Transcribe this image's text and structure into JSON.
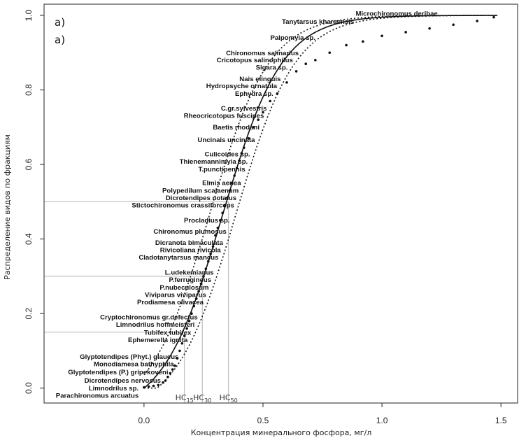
{
  "chart_data": {
    "type": "scatter",
    "panel_labels": [
      "a)",
      "a)"
    ],
    "xlabel": "Концентрация минерального фосфора, мг/л",
    "ylabel": "Распределение видов по фракциям",
    "xlim": [
      -0.42,
      1.57
    ],
    "ylim": [
      -0.04,
      1.03
    ],
    "x_ticks": [
      "0.0",
      "0.5",
      "1.0",
      "1.5"
    ],
    "y_ticks": [
      "0.0",
      "0.2",
      "0.4",
      "0.6",
      "0.8",
      "1.0"
    ],
    "hc_markers": [
      {
        "label": "HC",
        "sub": "15",
        "x": 0.17,
        "y": 0.15
      },
      {
        "label": "HC",
        "sub": "30",
        "x": 0.245,
        "y": 0.3
      },
      {
        "label": "HC",
        "sub": "50",
        "x": 0.355,
        "y": 0.5
      }
    ],
    "species_labels": [
      {
        "name": "Microchironomus deribae",
        "y": 1.005
      },
      {
        "name": "Tanytarsus kharaensis",
        "y": 0.983
      },
      {
        "name": "Palpomyia sp.",
        "y": 0.94
      },
      {
        "name": "Chironomus salinarius",
        "y": 0.899
      },
      {
        "name": "Cricotopus salinophilus",
        "y": 0.88
      },
      {
        "name": "Sigara sp.",
        "y": 0.86
      },
      {
        "name": "Nais elinguis",
        "y": 0.829
      },
      {
        "name": "Hydropsyche ornatula",
        "y": 0.81
      },
      {
        "name": "Ephydra sp.",
        "y": 0.79
      },
      {
        "name": "C.gr.sylvestris",
        "y": 0.75
      },
      {
        "name": "Rheocricotopus fuscipes",
        "y": 0.731
      },
      {
        "name": "Baetis rhodani",
        "y": 0.7
      },
      {
        "name": "Uncinais uncinata",
        "y": 0.666
      },
      {
        "name": "Culicoides sp.",
        "y": 0.627
      },
      {
        "name": "Thienemannimyia sp.",
        "y": 0.608
      },
      {
        "name": "T.punctipennis",
        "y": 0.587
      },
      {
        "name": "Elmis aenea",
        "y": 0.55
      },
      {
        "name": "Polypedilum scalaenum",
        "y": 0.53
      },
      {
        "name": "Dicrotendipes notatus",
        "y": 0.51
      },
      {
        "name": "Stictochironomus crassiforceps",
        "y": 0.49
      },
      {
        "name": "Procladius sp.",
        "y": 0.45
      },
      {
        "name": "Chironomus plumosus",
        "y": 0.42
      },
      {
        "name": "Dicranota bimaculata",
        "y": 0.39
      },
      {
        "name": "Rivicoliana rivicola",
        "y": 0.37
      },
      {
        "name": "Cladotanytarsus mancus",
        "y": 0.35
      },
      {
        "name": "L.udekemianus",
        "y": 0.31
      },
      {
        "name": "P.ferrugineus",
        "y": 0.29
      },
      {
        "name": "P.nubeculosum",
        "y": 0.27
      },
      {
        "name": "Viviparus viviparus",
        "y": 0.25
      },
      {
        "name": "Prodiamesa olivacea",
        "y": 0.23
      },
      {
        "name": "Cryptochironomus gr.defectus",
        "y": 0.19
      },
      {
        "name": "Limnodrilus hoffmeisteri",
        "y": 0.17
      },
      {
        "name": "Tubifex tubifex",
        "y": 0.149
      },
      {
        "name": "Ephemerella ignita",
        "y": 0.129
      },
      {
        "name": "Glyptotendipes (Phyt.) glaucus",
        "y": 0.084
      },
      {
        "name": "Monodiamesa bathyphila",
        "y": 0.064
      },
      {
        "name": "Glyptotendipes (P.) gripekoveni",
        "y": 0.043
      },
      {
        "name": "Dicrotendipes nervosus",
        "y": 0.02
      },
      {
        "name": "Limnodrilus sp.",
        "y": -0.001
      },
      {
        "name": "Parachironomus arcuatus",
        "y": -0.02
      }
    ],
    "fit_model": {
      "mu": 0.33,
      "s": 0.125,
      "band_offset": 0.055
    },
    "points": [
      {
        "x": 0.0,
        "y": 0.002
      },
      {
        "x": 0.02,
        "y": 0.004
      },
      {
        "x": 0.04,
        "y": 0.006
      },
      {
        "x": 0.06,
        "y": 0.008
      },
      {
        "x": 0.08,
        "y": 0.015
      },
      {
        "x": 0.09,
        "y": 0.02
      },
      {
        "x": 0.1,
        "y": 0.03
      },
      {
        "x": 0.11,
        "y": 0.04
      },
      {
        "x": 0.12,
        "y": 0.05
      },
      {
        "x": 0.13,
        "y": 0.06
      },
      {
        "x": 0.14,
        "y": 0.08
      },
      {
        "x": 0.15,
        "y": 0.1
      },
      {
        "x": 0.16,
        "y": 0.12
      },
      {
        "x": 0.17,
        "y": 0.14
      },
      {
        "x": 0.18,
        "y": 0.16
      },
      {
        "x": 0.19,
        "y": 0.18
      },
      {
        "x": 0.2,
        "y": 0.2
      },
      {
        "x": 0.21,
        "y": 0.22
      },
      {
        "x": 0.22,
        "y": 0.24
      },
      {
        "x": 0.23,
        "y": 0.26
      },
      {
        "x": 0.24,
        "y": 0.28
      },
      {
        "x": 0.25,
        "y": 0.3
      },
      {
        "x": 0.26,
        "y": 0.32
      },
      {
        "x": 0.27,
        "y": 0.34
      },
      {
        "x": 0.28,
        "y": 0.36
      },
      {
        "x": 0.29,
        "y": 0.38
      },
      {
        "x": 0.3,
        "y": 0.41
      },
      {
        "x": 0.31,
        "y": 0.43
      },
      {
        "x": 0.32,
        "y": 0.45
      },
      {
        "x": 0.33,
        "y": 0.47
      },
      {
        "x": 0.34,
        "y": 0.49
      },
      {
        "x": 0.35,
        "y": 0.51
      },
      {
        "x": 0.36,
        "y": 0.53
      },
      {
        "x": 0.37,
        "y": 0.55
      },
      {
        "x": 0.38,
        "y": 0.57
      },
      {
        "x": 0.39,
        "y": 0.59
      },
      {
        "x": 0.4,
        "y": 0.61
      },
      {
        "x": 0.41,
        "y": 0.63
      },
      {
        "x": 0.42,
        "y": 0.645
      },
      {
        "x": 0.44,
        "y": 0.67
      },
      {
        "x": 0.46,
        "y": 0.7
      },
      {
        "x": 0.48,
        "y": 0.72
      },
      {
        "x": 0.5,
        "y": 0.74
      },
      {
        "x": 0.53,
        "y": 0.77
      },
      {
        "x": 0.56,
        "y": 0.79
      },
      {
        "x": 0.6,
        "y": 0.82
      },
      {
        "x": 0.64,
        "y": 0.85
      },
      {
        "x": 0.68,
        "y": 0.87
      },
      {
        "x": 0.72,
        "y": 0.88
      },
      {
        "x": 0.78,
        "y": 0.9
      },
      {
        "x": 0.85,
        "y": 0.92
      },
      {
        "x": 0.92,
        "y": 0.93
      },
      {
        "x": 1.0,
        "y": 0.945
      },
      {
        "x": 1.1,
        "y": 0.955
      },
      {
        "x": 1.2,
        "y": 0.965
      },
      {
        "x": 1.3,
        "y": 0.975
      },
      {
        "x": 1.4,
        "y": 0.985
      },
      {
        "x": 1.47,
        "y": 0.995
      }
    ]
  }
}
